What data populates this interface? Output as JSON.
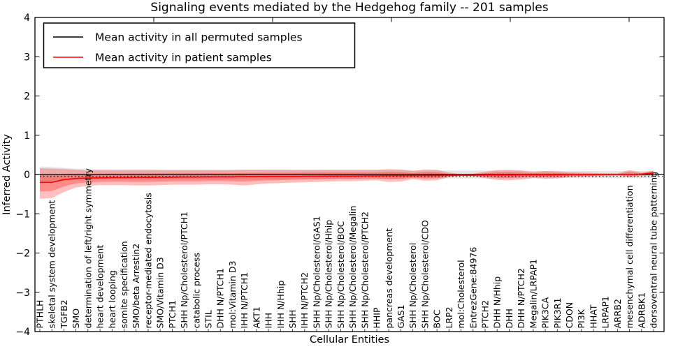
{
  "figure": {
    "title": "Signaling events mediated by the Hedgehog family -- 201 samples",
    "xlabel": "Cellular Entities",
    "ylabel": "Inferred Activity"
  },
  "legend": {
    "items": [
      {
        "label": "Mean activity in all permuted samples",
        "color": "#000000"
      },
      {
        "label": "Mean activity in patient samples",
        "color": "#ff0000"
      }
    ]
  },
  "axes": {
    "y_tick_labels": [
      "4",
      "3",
      "2",
      "1",
      "0",
      "−1",
      "−2",
      "−3",
      "−4"
    ],
    "y_tick_values": [
      4,
      3,
      2,
      1,
      0,
      -1,
      -2,
      -3,
      -4
    ],
    "y_range": [
      -4,
      4
    ]
  },
  "colors": {
    "patient_line": "#ff0000",
    "patient_band": "#ff0000",
    "permuted_line": "#000000",
    "permuted_band": "#e0e0e0",
    "spine": "#000000"
  },
  "chart_data": {
    "type": "line",
    "title": "Signaling events mediated by the Hedgehog family -- 201 samples",
    "xlabel": "Cellular Entities",
    "ylabel": "Inferred Activity",
    "ylim": [
      -4,
      4
    ],
    "grid": false,
    "legend_position": "upper left",
    "categories": [
      "PTHLH",
      "skeletal system development",
      "TGFB2",
      "SMO",
      "determination of left/right symmetry",
      "heart development",
      "heart looping",
      "somite specification",
      "SMO/beta Arrestin2",
      "receptor-mediated endocytosis",
      "SMO/Vitamin D3",
      "PTCH1",
      "SHH Np/Cholesterol/PTCH1",
      "catabolic process",
      "STIL",
      "DHH N/PTCH1",
      "mol:Vitamin D3",
      "IHH N/PTCH1",
      "AKT1",
      "IHH",
      "IHH N/Hhip",
      "SHH",
      "IHH N/PTCH2",
      "SHH Np/Cholesterol/GAS1",
      "SHH Np/Cholesterol/Hhip",
      "SHH Np/Cholesterol/BOC",
      "SHH Np/Cholesterol/Megalin",
      "SHH Np/Cholesterol/PTCH2",
      "HHIP",
      "pancreas development",
      "GAS1",
      "SHH Np/Cholesterol",
      "SHH Np/Cholesterol/CDO",
      "BOC",
      "LRP2",
      "mol:Cholesterol",
      "EntrezGene:84976",
      "PTCH2",
      "DHH N/Hhip",
      "DHH",
      "DHH N/PTCH2",
      "Megalin/LRPAP1",
      "PIK3CA",
      "PIK3R1",
      "CDON",
      "PI3K",
      "HHAT",
      "LRPAP1",
      "ARRB2",
      "mesenchymal cell differentiation",
      "ADRBK1",
      "dorsoventral neural tube patterning"
    ],
    "series": [
      {
        "name": "Mean activity in all permuted samples",
        "color": "#000000",
        "line_style": "solid",
        "values": [
          0,
          0,
          0,
          0,
          0,
          0,
          0,
          0,
          0,
          0,
          0,
          0,
          0,
          0,
          0,
          0,
          0,
          0,
          0,
          0,
          0,
          0,
          0,
          0,
          0,
          0,
          0,
          0,
          0,
          0,
          0,
          0,
          0,
          0,
          0,
          0,
          0,
          0,
          0,
          0,
          0,
          0,
          0,
          0,
          0,
          0,
          0,
          0,
          0,
          0,
          0,
          0
        ]
      },
      {
        "name": "Mean activity in patient samples",
        "color": "#ff0000",
        "line_style": "solid",
        "values": [
          -0.2,
          -0.2,
          -0.13,
          -0.1,
          -0.09,
          -0.085,
          -0.08,
          -0.08,
          -0.075,
          -0.075,
          -0.07,
          -0.07,
          -0.065,
          -0.065,
          -0.06,
          -0.06,
          -0.06,
          -0.055,
          -0.055,
          -0.05,
          -0.05,
          -0.05,
          -0.045,
          -0.045,
          -0.04,
          -0.04,
          -0.04,
          -0.035,
          -0.035,
          -0.03,
          -0.03,
          -0.03,
          -0.025,
          -0.025,
          -0.02,
          -0.02,
          -0.02,
          -0.015,
          -0.015,
          -0.015,
          -0.01,
          -0.01,
          -0.01,
          -0.01,
          -0.005,
          -0.005,
          -0.005,
          0.0,
          0.0,
          0.0,
          0.01,
          0.04
        ]
      }
    ],
    "bands": [
      {
        "name": "patient-samples-spread",
        "color": "#ff0000",
        "upper": [
          0.16,
          0.15,
          0.14,
          0.12,
          0.11,
          0.11,
          0.11,
          0.11,
          0.11,
          0.11,
          0.11,
          0.11,
          0.11,
          0.11,
          0.11,
          0.11,
          0.11,
          0.12,
          0.12,
          0.12,
          0.12,
          0.12,
          0.12,
          0.12,
          0.12,
          0.12,
          0.12,
          0.12,
          0.12,
          0.14,
          0.13,
          0.09,
          0.13,
          0.12,
          0.05,
          0.015,
          0.02,
          0.07,
          0.11,
          0.12,
          0.1,
          0.07,
          0.09,
          0.08,
          0.06,
          0.05,
          0.04,
          0.03,
          0.03,
          0.11,
          0.05,
          0.1
        ],
        "lower": [
          -0.62,
          -0.6,
          -0.45,
          -0.33,
          -0.29,
          -0.27,
          -0.27,
          -0.27,
          -0.28,
          -0.28,
          -0.27,
          -0.26,
          -0.26,
          -0.26,
          -0.25,
          -0.25,
          -0.26,
          -0.28,
          -0.25,
          -0.23,
          -0.22,
          -0.21,
          -0.2,
          -0.19,
          -0.18,
          -0.17,
          -0.17,
          -0.16,
          -0.15,
          -0.19,
          -0.18,
          -0.12,
          -0.16,
          -0.15,
          -0.07,
          -0.035,
          -0.04,
          -0.09,
          -0.14,
          -0.15,
          -0.13,
          -0.09,
          -0.11,
          -0.1,
          -0.07,
          -0.06,
          -0.05,
          -0.04,
          -0.03,
          -0.07,
          -0.04,
          -0.03
        ]
      },
      {
        "name": "permuted-samples-spread",
        "color": "#e0e0e0",
        "center": 0,
        "half_width": [
          0.2,
          0.19,
          0.17,
          0.15,
          0.14,
          0.13,
          0.13,
          0.13,
          0.13,
          0.13,
          0.12,
          0.12,
          0.12,
          0.12,
          0.12,
          0.12,
          0.12,
          0.12,
          0.12,
          0.12,
          0.12,
          0.11,
          0.11,
          0.11,
          0.11,
          0.11,
          0.11,
          0.11,
          0.11,
          0.11,
          0.11,
          0.1,
          0.1,
          0.1,
          0.1,
          0.1,
          0.1,
          0.1,
          0.1,
          0.1,
          0.1,
          0.09,
          0.09,
          0.09,
          0.09,
          0.09,
          0.09,
          0.09,
          0.09,
          0.09,
          0.09,
          0.09
        ]
      }
    ],
    "aux_lines": [
      {
        "name": "permuted-mean-dotted",
        "color": "#000000",
        "line_style": "dotted",
        "y": -0.05
      }
    ]
  }
}
